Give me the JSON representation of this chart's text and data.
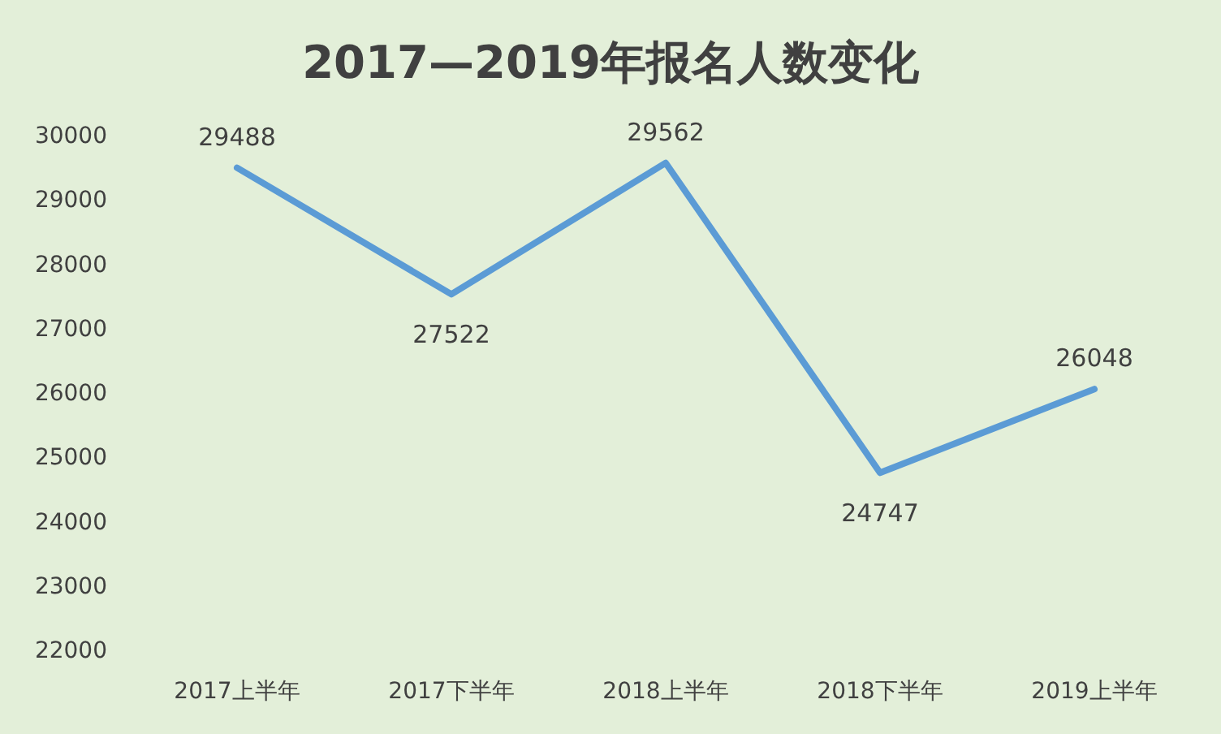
{
  "chart_data": {
    "type": "line",
    "title": "2017—2019年报名人数变化",
    "categories": [
      "2017上半年",
      "2017下半年",
      "2018上半年",
      "2018下半年",
      "2019上半年"
    ],
    "series": [
      {
        "color": "#5b9bd5",
        "values": [
          29488,
          27522,
          29562,
          24747,
          26048
        ]
      }
    ],
    "ylim": [
      22000,
      30000
    ],
    "yticks": [
      22000,
      23000,
      24000,
      25000,
      26000,
      27000,
      28000,
      29000,
      30000
    ],
    "data_labels": true,
    "grid": false
  }
}
